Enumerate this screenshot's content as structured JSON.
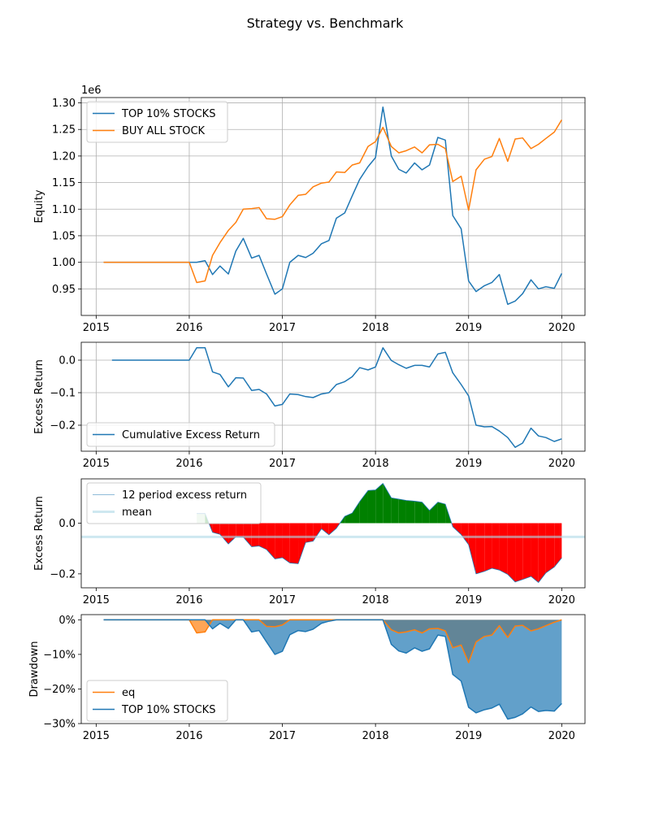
{
  "figure": {
    "title": "Strategy vs. Benchmark"
  },
  "colors": {
    "blue": "#1f77b4",
    "orange": "#ff7f0e",
    "green": "#008000",
    "red": "#ff0000",
    "light_blue": "#add8e6",
    "grid": "#b0b0b0"
  },
  "chart_data": [
    {
      "id": "equity",
      "type": "line",
      "title": "",
      "ylabel": "Equity",
      "y_offset_label": "1e6",
      "grid": true,
      "legend_position": "upper-left",
      "xlim": [
        2014.84,
        2020.25
      ],
      "ylim": [
        0.9,
        1.31
      ],
      "xticks": [
        2015,
        2016,
        2017,
        2018,
        2019,
        2020
      ],
      "xtick_labels": [
        "2015",
        "2016",
        "2017",
        "2018",
        "2019",
        "2020"
      ],
      "yticks": [
        0.95,
        1.0,
        1.05,
        1.1,
        1.15,
        1.2,
        1.25,
        1.3
      ],
      "ytick_labels": [
        "0.95",
        "1.00",
        "1.05",
        "1.10",
        "1.15",
        "1.20",
        "1.25",
        "1.30"
      ],
      "series": [
        {
          "name": "TOP 10% STOCKS",
          "color": "#1f77b4",
          "x": [
            2015.08,
            2015.17,
            2015.25,
            2015.33,
            2015.42,
            2015.5,
            2015.58,
            2015.67,
            2015.75,
            2015.83,
            2015.92,
            2016.0,
            2016.08,
            2016.17,
            2016.25,
            2016.33,
            2016.42,
            2016.5,
            2016.58,
            2016.67,
            2016.75,
            2016.83,
            2016.92,
            2017.0,
            2017.08,
            2017.17,
            2017.25,
            2017.33,
            2017.42,
            2017.5,
            2017.58,
            2017.67,
            2017.75,
            2017.83,
            2017.92,
            2018.0,
            2018.08,
            2018.17,
            2018.25,
            2018.33,
            2018.42,
            2018.5,
            2018.58,
            2018.67,
            2018.75,
            2018.83,
            2018.92,
            2019.0,
            2019.08,
            2019.17,
            2019.25,
            2019.33,
            2019.42,
            2019.5,
            2019.58,
            2019.67,
            2019.75,
            2019.83,
            2019.92,
            2020.0
          ],
          "y": [
            1.0,
            1.0,
            1.0,
            1.0,
            1.0,
            1.0,
            1.0,
            1.0,
            1.0,
            1.0,
            1.0,
            1.0,
            1.0,
            1.003,
            0.977,
            0.993,
            0.978,
            1.021,
            1.045,
            1.008,
            1.013,
            0.978,
            0.94,
            0.95,
            1.0,
            1.013,
            1.009,
            1.017,
            1.035,
            1.041,
            1.083,
            1.093,
            1.125,
            1.156,
            1.18,
            1.197,
            1.292,
            1.2,
            1.175,
            1.168,
            1.187,
            1.174,
            1.183,
            1.235,
            1.23,
            1.088,
            1.063,
            0.965,
            0.945,
            0.956,
            0.962,
            0.977,
            0.921,
            0.927,
            0.941,
            0.967,
            0.95,
            0.954,
            0.951,
            0.979
          ]
        },
        {
          "name": "BUY ALL STOCK",
          "color": "#ff7f0e",
          "x": [
            2015.08,
            2015.17,
            2015.25,
            2015.33,
            2015.42,
            2015.5,
            2015.58,
            2015.67,
            2015.75,
            2015.83,
            2015.92,
            2016.0,
            2016.08,
            2016.17,
            2016.25,
            2016.33,
            2016.42,
            2016.5,
            2016.58,
            2016.67,
            2016.75,
            2016.83,
            2016.92,
            2017.0,
            2017.08,
            2017.17,
            2017.25,
            2017.33,
            2017.42,
            2017.5,
            2017.58,
            2017.67,
            2017.75,
            2017.83,
            2017.92,
            2018.0,
            2018.08,
            2018.17,
            2018.25,
            2018.33,
            2018.42,
            2018.5,
            2018.58,
            2018.67,
            2018.75,
            2018.83,
            2018.92,
            2019.0,
            2019.08,
            2019.17,
            2019.25,
            2019.33,
            2019.42,
            2019.5,
            2019.58,
            2019.67,
            2019.75,
            2019.83,
            2019.92,
            2020.0
          ],
          "y": [
            1.0,
            1.0,
            1.0,
            1.0,
            1.0,
            1.0,
            1.0,
            1.0,
            1.0,
            1.0,
            1.0,
            1.0,
            0.962,
            0.965,
            1.013,
            1.037,
            1.06,
            1.075,
            1.1,
            1.101,
            1.103,
            1.082,
            1.081,
            1.086,
            1.108,
            1.126,
            1.128,
            1.142,
            1.149,
            1.151,
            1.17,
            1.169,
            1.183,
            1.187,
            1.218,
            1.227,
            1.254,
            1.218,
            1.206,
            1.21,
            1.217,
            1.206,
            1.221,
            1.222,
            1.214,
            1.152,
            1.162,
            1.098,
            1.174,
            1.194,
            1.199,
            1.233,
            1.19,
            1.232,
            1.234,
            1.214,
            1.222,
            1.233,
            1.245,
            1.268
          ]
        }
      ]
    },
    {
      "id": "cumulative-excess",
      "type": "line",
      "title": "",
      "ylabel": "Excess Return",
      "grid": true,
      "legend_position": "lower-left",
      "xlim": [
        2014.84,
        2020.25
      ],
      "ylim": [
        -0.28,
        0.055
      ],
      "xticks": [
        2015,
        2016,
        2017,
        2018,
        2019,
        2020
      ],
      "xtick_labels": [
        "2015",
        "2016",
        "2017",
        "2018",
        "2019",
        "2020"
      ],
      "yticks": [
        -0.2,
        -0.1,
        0.0
      ],
      "ytick_labels": [
        "−0.2",
        "−0.1",
        "0.0"
      ],
      "series": [
        {
          "name": "Cumulative Excess Return",
          "color": "#1f77b4",
          "x": [
            2015.17,
            2015.25,
            2015.33,
            2015.42,
            2015.5,
            2015.58,
            2015.67,
            2015.75,
            2015.83,
            2015.92,
            2016.0,
            2016.08,
            2016.17,
            2016.25,
            2016.33,
            2016.42,
            2016.5,
            2016.58,
            2016.67,
            2016.75,
            2016.83,
            2016.92,
            2017.0,
            2017.08,
            2017.17,
            2017.25,
            2017.33,
            2017.42,
            2017.5,
            2017.58,
            2017.67,
            2017.75,
            2017.83,
            2017.92,
            2018.0,
            2018.08,
            2018.17,
            2018.25,
            2018.33,
            2018.42,
            2018.5,
            2018.58,
            2018.67,
            2018.75,
            2018.83,
            2018.92,
            2019.0,
            2019.08,
            2019.17,
            2019.25,
            2019.33,
            2019.42,
            2019.5,
            2019.58,
            2019.67,
            2019.75,
            2019.83,
            2019.92,
            2020.0
          ],
          "y": [
            0.0,
            0.0,
            0.0,
            0.0,
            0.0,
            0.0,
            0.0,
            0.0,
            0.0,
            0.0,
            0.0,
            0.038,
            0.038,
            -0.036,
            -0.044,
            -0.082,
            -0.054,
            -0.055,
            -0.093,
            -0.09,
            -0.104,
            -0.141,
            -0.136,
            -0.104,
            -0.106,
            -0.112,
            -0.115,
            -0.104,
            -0.1,
            -0.075,
            -0.066,
            -0.051,
            -0.023,
            -0.03,
            -0.021,
            0.038,
            -0.001,
            -0.014,
            -0.025,
            -0.016,
            -0.016,
            -0.021,
            0.019,
            0.024,
            -0.039,
            -0.075,
            -0.11,
            -0.2,
            -0.205,
            -0.204,
            -0.218,
            -0.238,
            -0.268,
            -0.255,
            -0.209,
            -0.233,
            -0.238,
            -0.25,
            -0.242
          ]
        }
      ]
    },
    {
      "id": "rolling-excess",
      "type": "area",
      "title": "",
      "ylabel": "Excess Return",
      "grid": false,
      "legend_position": "upper-left",
      "xlim": [
        2014.84,
        2020.25
      ],
      "ylim": [
        -0.255,
        0.175
      ],
      "xticks": [
        2015,
        2016,
        2017,
        2018,
        2019,
        2020
      ],
      "xtick_labels": [
        "2015",
        "2016",
        "2017",
        "2018",
        "2019",
        "2020"
      ],
      "yticks": [
        -0.2,
        0.0
      ],
      "ytick_labels": [
        "−0.2",
        "0.0"
      ],
      "mean": -0.054,
      "mean_color": "#add8e6",
      "positive_color": "#008000",
      "negative_color": "#ff0000",
      "series": [
        {
          "name": "12 period excess return",
          "color": "#1f77b4",
          "x": [
            2016.08,
            2016.17,
            2016.25,
            2016.33,
            2016.42,
            2016.5,
            2016.58,
            2016.67,
            2016.75,
            2016.83,
            2016.92,
            2017.0,
            2017.08,
            2017.17,
            2017.25,
            2017.33,
            2017.42,
            2017.5,
            2017.58,
            2017.67,
            2017.75,
            2017.83,
            2017.92,
            2018.0,
            2018.08,
            2018.17,
            2018.25,
            2018.33,
            2018.42,
            2018.5,
            2018.58,
            2018.67,
            2018.75,
            2018.83,
            2018.92,
            2019.0,
            2019.08,
            2019.17,
            2019.25,
            2019.33,
            2019.42,
            2019.5,
            2019.58,
            2019.67,
            2019.75,
            2019.83,
            2019.92,
            2020.0
          ],
          "y": [
            0.038,
            0.038,
            -0.036,
            -0.044,
            -0.082,
            -0.054,
            -0.055,
            -0.093,
            -0.09,
            -0.104,
            -0.141,
            -0.136,
            -0.157,
            -0.16,
            -0.076,
            -0.071,
            -0.022,
            -0.046,
            -0.02,
            0.027,
            0.04,
            0.085,
            0.129,
            0.131,
            0.157,
            0.1,
            0.095,
            0.09,
            0.087,
            0.083,
            0.05,
            0.083,
            0.075,
            -0.014,
            -0.045,
            -0.085,
            -0.2,
            -0.19,
            -0.178,
            -0.185,
            -0.202,
            -0.232,
            -0.222,
            -0.21,
            -0.234,
            -0.196,
            -0.173,
            -0.137
          ]
        }
      ]
    },
    {
      "id": "drawdown",
      "type": "area",
      "title": "",
      "ylabel": "Drawdown",
      "grid": false,
      "legend_position": "lower-left",
      "xlim": [
        2014.84,
        2020.25
      ],
      "ylim": [
        -0.3,
        0.015
      ],
      "xticks": [
        2015,
        2016,
        2017,
        2018,
        2019,
        2020
      ],
      "xtick_labels": [
        "2015",
        "2016",
        "2017",
        "2018",
        "2019",
        "2020"
      ],
      "yticks": [
        -0.3,
        -0.2,
        -0.1,
        0.0
      ],
      "ytick_labels": [
        "−30%",
        "−20%",
        "−10%",
        "0%"
      ],
      "series": [
        {
          "name": "eq",
          "color": "#ff7f0e",
          "x": [
            2015.08,
            2015.17,
            2015.25,
            2015.33,
            2015.42,
            2015.5,
            2015.58,
            2015.67,
            2015.75,
            2015.83,
            2015.92,
            2016.0,
            2016.08,
            2016.17,
            2016.25,
            2016.33,
            2016.42,
            2016.5,
            2016.58,
            2016.67,
            2016.75,
            2016.83,
            2016.92,
            2017.0,
            2017.08,
            2017.17,
            2017.25,
            2017.33,
            2017.42,
            2017.5,
            2017.58,
            2017.67,
            2017.75,
            2017.83,
            2017.92,
            2018.0,
            2018.08,
            2018.17,
            2018.25,
            2018.33,
            2018.42,
            2018.5,
            2018.58,
            2018.67,
            2018.75,
            2018.83,
            2018.92,
            2019.0,
            2019.08,
            2019.17,
            2019.25,
            2019.33,
            2019.42,
            2019.5,
            2019.58,
            2019.67,
            2019.75,
            2019.83,
            2019.92,
            2020.0
          ],
          "y": [
            0.0,
            0.0,
            0.0,
            0.0,
            0.0,
            0.0,
            0.0,
            0.0,
            0.0,
            0.0,
            0.0,
            0.0,
            -0.038,
            -0.035,
            0.0,
            0.0,
            0.0,
            0.0,
            0.0,
            0.0,
            0.0,
            -0.019,
            -0.02,
            -0.015,
            0.0,
            0.0,
            0.0,
            0.0,
            0.0,
            0.0,
            0.0,
            0.0,
            0.0,
            0.0,
            0.0,
            0.0,
            0.0,
            -0.029,
            -0.038,
            -0.035,
            -0.029,
            -0.038,
            -0.026,
            -0.025,
            -0.032,
            -0.081,
            -0.073,
            -0.124,
            -0.064,
            -0.048,
            -0.044,
            -0.017,
            -0.051,
            -0.018,
            -0.016,
            -0.032,
            -0.026,
            -0.017,
            -0.007,
            0.0
          ]
        },
        {
          "name": "TOP 10% STOCKS",
          "color": "#1f77b4",
          "x": [
            2015.08,
            2015.17,
            2015.25,
            2015.33,
            2015.42,
            2015.5,
            2015.58,
            2015.67,
            2015.75,
            2015.83,
            2015.92,
            2016.0,
            2016.08,
            2016.17,
            2016.25,
            2016.33,
            2016.42,
            2016.5,
            2016.58,
            2016.67,
            2016.75,
            2016.83,
            2016.92,
            2017.0,
            2017.08,
            2017.17,
            2017.25,
            2017.33,
            2017.42,
            2017.5,
            2017.58,
            2017.67,
            2017.75,
            2017.83,
            2017.92,
            2018.0,
            2018.08,
            2018.17,
            2018.25,
            2018.33,
            2018.42,
            2018.5,
            2018.58,
            2018.67,
            2018.75,
            2018.83,
            2018.92,
            2019.0,
            2019.08,
            2019.17,
            2019.25,
            2019.33,
            2019.42,
            2019.5,
            2019.58,
            2019.67,
            2019.75,
            2019.83,
            2019.92,
            2020.0
          ],
          "y": [
            0.0,
            0.0,
            0.0,
            0.0,
            0.0,
            0.0,
            0.0,
            0.0,
            0.0,
            0.0,
            0.0,
            0.0,
            0.0,
            0.0,
            -0.026,
            -0.01,
            -0.025,
            0.0,
            0.0,
            -0.035,
            -0.031,
            -0.064,
            -0.1,
            -0.091,
            -0.043,
            -0.031,
            -0.034,
            -0.027,
            -0.01,
            -0.004,
            0.0,
            0.0,
            0.0,
            0.0,
            0.0,
            0.0,
            0.0,
            -0.071,
            -0.09,
            -0.096,
            -0.081,
            -0.091,
            -0.084,
            -0.044,
            -0.048,
            -0.158,
            -0.177,
            -0.253,
            -0.269,
            -0.26,
            -0.255,
            -0.244,
            -0.287,
            -0.282,
            -0.272,
            -0.252,
            -0.265,
            -0.262,
            -0.264,
            -0.242
          ]
        }
      ]
    }
  ]
}
